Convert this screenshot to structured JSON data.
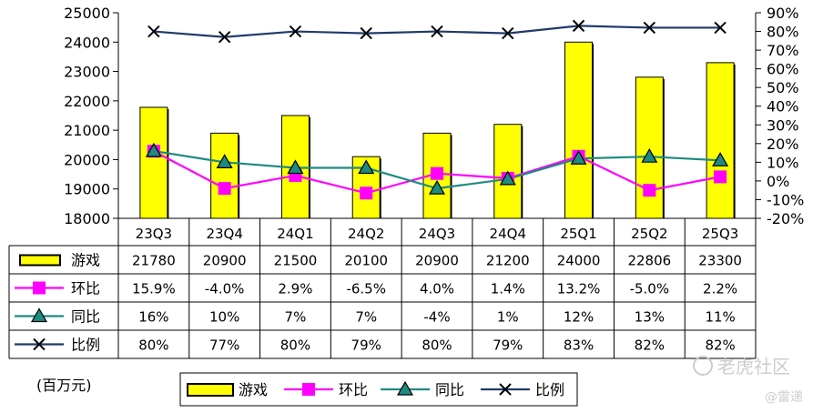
{
  "chart_data": {
    "type": "bar",
    "categories": [
      "23Q3",
      "23Q4",
      "24Q1",
      "24Q2",
      "24Q3",
      "24Q4",
      "25Q1",
      "25Q2",
      "25Q3"
    ],
    "unit_label": "(百万元)",
    "y_left": {
      "lim": [
        18000,
        25000
      ],
      "ticks": [
        18000,
        19000,
        20000,
        21000,
        22000,
        23000,
        24000,
        25000
      ]
    },
    "y_right": {
      "lim": [
        -20,
        90
      ],
      "ticks": [
        -20,
        -10,
        0,
        10,
        20,
        30,
        40,
        50,
        60,
        70,
        80,
        90
      ],
      "tick_labels": [
        "-20%",
        "-10%",
        "0%",
        "10%",
        "20%",
        "30%",
        "40%",
        "50%",
        "60%",
        "70%",
        "80%",
        "90%"
      ]
    },
    "grid": false,
    "legend_position": "bottom",
    "series": [
      {
        "name": "游戏",
        "type": "bar",
        "axis": "left",
        "color": "#FFFF00",
        "values": [
          21780,
          20900,
          21500,
          20100,
          20900,
          21200,
          24000,
          22806,
          23300
        ],
        "labels": [
          "21780",
          "20900",
          "21500",
          "20100",
          "20900",
          "21200",
          "24000",
          "22806",
          "23300"
        ]
      },
      {
        "name": "环比",
        "type": "line",
        "axis": "right",
        "color": "#FF00FF",
        "marker": "square",
        "values": [
          15.9,
          -4.0,
          2.9,
          -6.5,
          4.0,
          1.4,
          13.2,
          -5.0,
          2.2
        ],
        "labels": [
          "15.9%",
          "-4.0%",
          "2.9%",
          "-6.5%",
          "4.0%",
          "1.4%",
          "13.2%",
          "-5.0%",
          "2.2%"
        ]
      },
      {
        "name": "同比",
        "type": "line",
        "axis": "right",
        "color": "#1F8A80",
        "marker": "triangle",
        "values": [
          16,
          10,
          7,
          7,
          -4,
          1,
          12,
          13,
          11
        ],
        "labels": [
          "16%",
          "10%",
          "7%",
          "7%",
          "-4%",
          "1%",
          "12%",
          "13%",
          "11%"
        ]
      },
      {
        "name": "比例",
        "type": "line",
        "axis": "right",
        "color": "#1F3A6B",
        "marker": "x",
        "values": [
          80,
          77,
          80,
          79,
          80,
          79,
          83,
          82,
          82
        ],
        "labels": [
          "80%",
          "77%",
          "80%",
          "79%",
          "80%",
          "79%",
          "83%",
          "82%",
          "82%"
        ]
      }
    ]
  },
  "watermark": {
    "main": "老虎社区",
    "sub": "@雷递"
  }
}
